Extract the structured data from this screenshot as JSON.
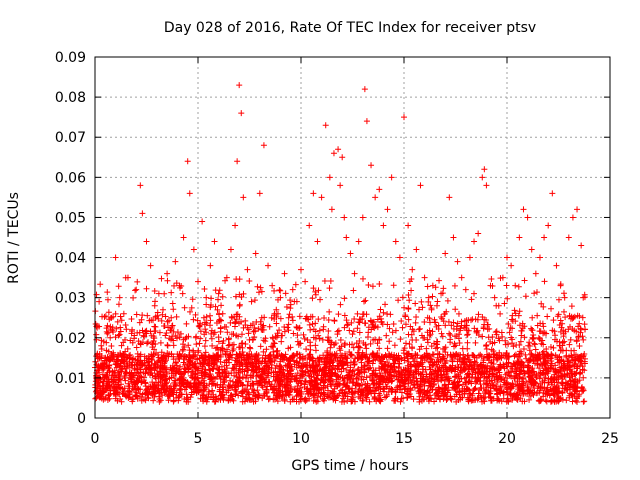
{
  "chart_data": {
    "type": "scatter",
    "title": "Day 028 of 2016, Rate Of TEC Index for receiver ptsv",
    "xlabel": "GPS time / hours",
    "ylabel": "ROTI / TECUs",
    "xlim": [
      0,
      25
    ],
    "ylim": [
      0,
      0.09
    ],
    "xticks": [
      "0",
      "5",
      "10",
      "15",
      "20",
      "25"
    ],
    "yticks": [
      "0",
      "0.01",
      "0.02",
      "0.03",
      "0.04",
      "0.05",
      "0.06",
      "0.07",
      "0.08",
      "0.09"
    ],
    "grid": true,
    "marker": "plus",
    "color": "#ff0000",
    "series": [
      {
        "x": [
          0.1,
          0.2,
          0.3,
          0.4,
          0.5,
          0.6,
          0.8,
          1.0,
          1.2,
          1.4,
          1.6,
          1.8,
          2.0,
          2.2,
          2.3,
          2.5,
          2.7,
          2.9,
          3.1,
          3.3,
          3.5,
          3.7,
          3.9,
          4.1,
          4.3,
          4.5,
          4.6,
          4.8,
          5.0,
          5.2,
          5.4,
          5.6,
          5.8,
          6.0,
          6.2,
          6.4,
          6.6,
          6.8,
          6.9,
          7.0,
          7.1,
          7.2,
          7.4,
          7.6,
          7.8,
          8.0,
          8.2,
          8.4,
          8.6,
          8.8,
          9.0,
          9.2,
          9.4,
          9.6,
          9.8,
          10.0,
          10.2,
          10.4,
          10.6,
          10.8,
          11.0,
          11.2,
          11.4,
          11.5,
          11.6,
          11.8,
          11.9,
          12.0,
          12.1,
          12.2,
          12.4,
          12.6,
          12.8,
          13.0,
          13.1,
          13.2,
          13.4,
          13.6,
          13.8,
          14.0,
          14.2,
          14.4,
          14.6,
          14.8,
          15.0,
          15.2,
          15.4,
          15.6,
          15.8,
          16.0,
          16.2,
          16.4,
          16.6,
          16.8,
          17.0,
          17.2,
          17.4,
          17.6,
          17.8,
          18.0,
          18.2,
          18.4,
          18.6,
          18.8,
          18.9,
          19.0,
          19.2,
          19.4,
          19.6,
          19.8,
          20.0,
          20.2,
          20.4,
          20.6,
          20.8,
          21.0,
          21.2,
          21.4,
          21.6,
          21.8,
          22.0,
          22.2,
          22.4,
          22.6,
          22.8,
          23.0,
          23.2,
          23.4,
          23.6,
          23.7
        ],
        "y": [
          0.023,
          0.029,
          0.018,
          0.012,
          0.015,
          0.021,
          0.025,
          0.04,
          0.03,
          0.026,
          0.035,
          0.022,
          0.032,
          0.058,
          0.051,
          0.044,
          0.038,
          0.028,
          0.031,
          0.027,
          0.036,
          0.025,
          0.039,
          0.033,
          0.045,
          0.064,
          0.056,
          0.042,
          0.034,
          0.049,
          0.03,
          0.038,
          0.044,
          0.031,
          0.026,
          0.035,
          0.042,
          0.048,
          0.064,
          0.083,
          0.076,
          0.055,
          0.037,
          0.029,
          0.041,
          0.056,
          0.068,
          0.038,
          0.033,
          0.027,
          0.03,
          0.036,
          0.025,
          0.032,
          0.029,
          0.037,
          0.034,
          0.048,
          0.056,
          0.044,
          0.055,
          0.073,
          0.06,
          0.052,
          0.066,
          0.067,
          0.058,
          0.065,
          0.05,
          0.045,
          0.041,
          0.036,
          0.044,
          0.05,
          0.082,
          0.074,
          0.063,
          0.055,
          0.057,
          0.048,
          0.052,
          0.06,
          0.044,
          0.04,
          0.075,
          0.048,
          0.037,
          0.042,
          0.058,
          0.035,
          0.03,
          0.033,
          0.028,
          0.031,
          0.041,
          0.055,
          0.045,
          0.039,
          0.035,
          0.032,
          0.04,
          0.044,
          0.046,
          0.06,
          0.062,
          0.058,
          0.033,
          0.03,
          0.028,
          0.035,
          0.04,
          0.038,
          0.033,
          0.045,
          0.052,
          0.05,
          0.042,
          0.036,
          0.04,
          0.045,
          0.048,
          0.056,
          0.038,
          0.033,
          0.03,
          0.045,
          0.05,
          0.052,
          0.043,
          0.03
        ]
      }
    ]
  }
}
